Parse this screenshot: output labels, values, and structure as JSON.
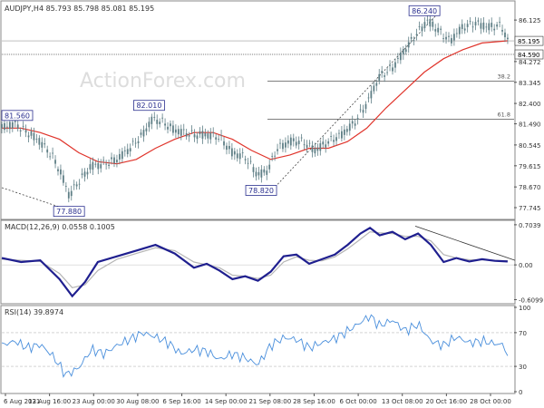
{
  "chart_data": [
    {
      "type": "candlestick",
      "title": "AUDJPY,H4 85.793 85.798 85.081 85.195",
      "y_ticks": [
        86.125,
        84.272,
        83.345,
        82.4,
        81.49,
        80.545,
        79.615,
        78.67,
        77.745
      ],
      "ylim": [
        77.3,
        86.9
      ],
      "x_ticks": [
        "6 Aug 2021",
        "13 Aug 16:00",
        "23 Aug 00:00",
        "30 Aug 08:00",
        "6 Sep 16:00",
        "14 Sep 00:00",
        "21 Sep 08:00",
        "28 Sep 16:00",
        "6 Oct 00:00",
        "13 Oct 08:00",
        "20 Oct 16:00",
        "28 Oct 00:00"
      ],
      "current_price": "85.195",
      "level_labels": [
        "84.590"
      ],
      "fib_levels": [
        {
          "label": "38.2",
          "value": 83.4
        },
        {
          "label": "61.8",
          "value": 81.7
        }
      ],
      "price_annotations": [
        {
          "text": "81.560",
          "x": 0.5,
          "y": 81.56
        },
        {
          "text": "77.880",
          "x": 10.5,
          "y": 77.88
        },
        {
          "text": "82.010",
          "x": 23,
          "y": 82.01
        },
        {
          "text": "78.820",
          "x": 40.5,
          "y": 78.82
        },
        {
          "text": "86.240",
          "x": 66,
          "y": 86.24
        }
      ],
      "price_path": [
        {
          "x": 0,
          "y": 81.3
        },
        {
          "x": 2,
          "y": 81.5
        },
        {
          "x": 4,
          "y": 81.1
        },
        {
          "x": 6,
          "y": 80.7
        },
        {
          "x": 8,
          "y": 80.0
        },
        {
          "x": 9.5,
          "y": 79.1
        },
        {
          "x": 10.5,
          "y": 78.3
        },
        {
          "x": 12,
          "y": 78.9
        },
        {
          "x": 14,
          "y": 79.6
        },
        {
          "x": 16,
          "y": 79.7
        },
        {
          "x": 18,
          "y": 79.9
        },
        {
          "x": 20,
          "y": 80.4
        },
        {
          "x": 22,
          "y": 81.0
        },
        {
          "x": 23.5,
          "y": 81.7
        },
        {
          "x": 25,
          "y": 81.6
        },
        {
          "x": 27,
          "y": 81.2
        },
        {
          "x": 30,
          "y": 81.0
        },
        {
          "x": 32,
          "y": 81.0
        },
        {
          "x": 34,
          "y": 80.9
        },
        {
          "x": 36,
          "y": 80.2
        },
        {
          "x": 38,
          "y": 80.0
        },
        {
          "x": 40,
          "y": 79.2
        },
        {
          "x": 41.5,
          "y": 79.4
        },
        {
          "x": 43,
          "y": 80.4
        },
        {
          "x": 45,
          "y": 80.7
        },
        {
          "x": 47,
          "y": 80.7
        },
        {
          "x": 49,
          "y": 80.3
        },
        {
          "x": 51,
          "y": 80.7
        },
        {
          "x": 53,
          "y": 81.0
        },
        {
          "x": 55,
          "y": 81.5
        },
        {
          "x": 57,
          "y": 82.4
        },
        {
          "x": 59,
          "y": 83.6
        },
        {
          "x": 61,
          "y": 84.0
        },
        {
          "x": 63,
          "y": 84.8
        },
        {
          "x": 65,
          "y": 85.6
        },
        {
          "x": 66.5,
          "y": 86.1
        },
        {
          "x": 68,
          "y": 85.7
        },
        {
          "x": 70,
          "y": 85.2
        },
        {
          "x": 72,
          "y": 85.8
        },
        {
          "x": 74,
          "y": 86.0
        },
        {
          "x": 76,
          "y": 85.8
        },
        {
          "x": 78,
          "y": 85.9
        },
        {
          "x": 79,
          "y": 85.2
        }
      ],
      "ma_path": [
        {
          "x": 0,
          "y": 81.3
        },
        {
          "x": 3,
          "y": 81.3
        },
        {
          "x": 6,
          "y": 81.1
        },
        {
          "x": 9,
          "y": 80.8
        },
        {
          "x": 12,
          "y": 80.2
        },
        {
          "x": 15,
          "y": 79.8
        },
        {
          "x": 18,
          "y": 79.7
        },
        {
          "x": 21,
          "y": 79.9
        },
        {
          "x": 24,
          "y": 80.4
        },
        {
          "x": 27,
          "y": 80.8
        },
        {
          "x": 30,
          "y": 81.1
        },
        {
          "x": 33,
          "y": 81.1
        },
        {
          "x": 36,
          "y": 80.8
        },
        {
          "x": 39,
          "y": 80.3
        },
        {
          "x": 42,
          "y": 79.9
        },
        {
          "x": 45,
          "y": 80.1
        },
        {
          "x": 48,
          "y": 80.4
        },
        {
          "x": 51,
          "y": 80.4
        },
        {
          "x": 54,
          "y": 80.7
        },
        {
          "x": 57,
          "y": 81.3
        },
        {
          "x": 60,
          "y": 82.2
        },
        {
          "x": 63,
          "y": 83.0
        },
        {
          "x": 66,
          "y": 83.8
        },
        {
          "x": 69,
          "y": 84.4
        },
        {
          "x": 72,
          "y": 84.8
        },
        {
          "x": 75,
          "y": 85.1
        },
        {
          "x": 79,
          "y": 85.2
        }
      ],
      "colors": {
        "candles": "#5f7f86",
        "ma": "#e0342b",
        "annotation": "#2a2f8f",
        "levels": "#333333"
      }
    },
    {
      "type": "line",
      "title": "MACD(12,26,9) 0.0558 0.1005",
      "y_ticks": [
        "0.7039",
        "0.00",
        "-0.6099"
      ],
      "ylim": [
        -0.65,
        0.75
      ],
      "series": [
        {
          "name": "MACD",
          "color": "#1f1f8f",
          "points": [
            {
              "x": 0,
              "y": 0.12
            },
            {
              "x": 3,
              "y": 0.05
            },
            {
              "x": 6,
              "y": 0.08
            },
            {
              "x": 9,
              "y": -0.25
            },
            {
              "x": 11,
              "y": -0.55
            },
            {
              "x": 13,
              "y": -0.3
            },
            {
              "x": 15,
              "y": 0.05
            },
            {
              "x": 18,
              "y": 0.15
            },
            {
              "x": 21,
              "y": 0.25
            },
            {
              "x": 24,
              "y": 0.35
            },
            {
              "x": 27,
              "y": 0.2
            },
            {
              "x": 30,
              "y": -0.05
            },
            {
              "x": 32,
              "y": 0.02
            },
            {
              "x": 34,
              "y": -0.1
            },
            {
              "x": 36,
              "y": -0.25
            },
            {
              "x": 38,
              "y": -0.2
            },
            {
              "x": 40,
              "y": -0.28
            },
            {
              "x": 42,
              "y": -0.12
            },
            {
              "x": 44,
              "y": 0.15
            },
            {
              "x": 46,
              "y": 0.18
            },
            {
              "x": 48,
              "y": 0.02
            },
            {
              "x": 50,
              "y": 0.1
            },
            {
              "x": 52,
              "y": 0.18
            },
            {
              "x": 54,
              "y": 0.35
            },
            {
              "x": 56,
              "y": 0.55
            },
            {
              "x": 57.5,
              "y": 0.65
            },
            {
              "x": 59,
              "y": 0.52
            },
            {
              "x": 61,
              "y": 0.58
            },
            {
              "x": 63,
              "y": 0.45
            },
            {
              "x": 65,
              "y": 0.55
            },
            {
              "x": 67,
              "y": 0.35
            },
            {
              "x": 69,
              "y": 0.05
            },
            {
              "x": 71,
              "y": 0.12
            },
            {
              "x": 73,
              "y": 0.06
            },
            {
              "x": 75,
              "y": 0.1
            },
            {
              "x": 77,
              "y": 0.07
            },
            {
              "x": 79,
              "y": 0.06
            }
          ]
        },
        {
          "name": "Signal",
          "color": "#b5b5b5",
          "points": [
            {
              "x": 0,
              "y": 0.1
            },
            {
              "x": 3,
              "y": 0.08
            },
            {
              "x": 6,
              "y": 0.06
            },
            {
              "x": 9,
              "y": -0.15
            },
            {
              "x": 11,
              "y": -0.4
            },
            {
              "x": 13,
              "y": -0.35
            },
            {
              "x": 15,
              "y": -0.1
            },
            {
              "x": 18,
              "y": 0.1
            },
            {
              "x": 21,
              "y": 0.2
            },
            {
              "x": 24,
              "y": 0.3
            },
            {
              "x": 27,
              "y": 0.25
            },
            {
              "x": 30,
              "y": 0.05
            },
            {
              "x": 32,
              "y": 0.0
            },
            {
              "x": 34,
              "y": -0.05
            },
            {
              "x": 36,
              "y": -0.18
            },
            {
              "x": 38,
              "y": -0.2
            },
            {
              "x": 40,
              "y": -0.24
            },
            {
              "x": 42,
              "y": -0.18
            },
            {
              "x": 44,
              "y": 0.05
            },
            {
              "x": 46,
              "y": 0.14
            },
            {
              "x": 48,
              "y": 0.08
            },
            {
              "x": 50,
              "y": 0.07
            },
            {
              "x": 52,
              "y": 0.14
            },
            {
              "x": 54,
              "y": 0.28
            },
            {
              "x": 56,
              "y": 0.45
            },
            {
              "x": 57.5,
              "y": 0.58
            },
            {
              "x": 59,
              "y": 0.56
            },
            {
              "x": 61,
              "y": 0.55
            },
            {
              "x": 63,
              "y": 0.5
            },
            {
              "x": 65,
              "y": 0.5
            },
            {
              "x": 67,
              "y": 0.42
            },
            {
              "x": 69,
              "y": 0.18
            },
            {
              "x": 71,
              "y": 0.12
            },
            {
              "x": 73,
              "y": 0.09
            },
            {
              "x": 75,
              "y": 0.09
            },
            {
              "x": 77,
              "y": 0.08
            },
            {
              "x": 79,
              "y": 0.07
            }
          ]
        }
      ]
    },
    {
      "type": "line",
      "title": "RSI(14) 39.8974",
      "y_ticks": [
        "100",
        "70",
        "30",
        "0"
      ],
      "ylim": [
        0,
        100
      ],
      "series": [
        {
          "name": "RSI",
          "color": "#4a8fdc",
          "points": [
            {
              "x": 0,
              "y": 55
            },
            {
              "x": 2,
              "y": 60
            },
            {
              "x": 4,
              "y": 52
            },
            {
              "x": 6,
              "y": 56
            },
            {
              "x": 8,
              "y": 42
            },
            {
              "x": 10,
              "y": 20
            },
            {
              "x": 12,
              "y": 28
            },
            {
              "x": 14,
              "y": 50
            },
            {
              "x": 16,
              "y": 45
            },
            {
              "x": 18,
              "y": 55
            },
            {
              "x": 20,
              "y": 62
            },
            {
              "x": 22,
              "y": 70
            },
            {
              "x": 24,
              "y": 65
            },
            {
              "x": 26,
              "y": 58
            },
            {
              "x": 28,
              "y": 45
            },
            {
              "x": 30,
              "y": 50
            },
            {
              "x": 32,
              "y": 48
            },
            {
              "x": 34,
              "y": 38
            },
            {
              "x": 36,
              "y": 45
            },
            {
              "x": 38,
              "y": 40
            },
            {
              "x": 40,
              "y": 32
            },
            {
              "x": 42,
              "y": 55
            },
            {
              "x": 44,
              "y": 64
            },
            {
              "x": 46,
              "y": 62
            },
            {
              "x": 48,
              "y": 52
            },
            {
              "x": 50,
              "y": 58
            },
            {
              "x": 52,
              "y": 63
            },
            {
              "x": 54,
              "y": 72
            },
            {
              "x": 56,
              "y": 82
            },
            {
              "x": 57.5,
              "y": 90
            },
            {
              "x": 59,
              "y": 78
            },
            {
              "x": 61,
              "y": 85
            },
            {
              "x": 63,
              "y": 72
            },
            {
              "x": 65,
              "y": 80
            },
            {
              "x": 67,
              "y": 60
            },
            {
              "x": 69,
              "y": 55
            },
            {
              "x": 71,
              "y": 65
            },
            {
              "x": 73,
              "y": 58
            },
            {
              "x": 75,
              "y": 60
            },
            {
              "x": 77,
              "y": 57
            },
            {
              "x": 78.5,
              "y": 55
            },
            {
              "x": 79,
              "y": 40
            }
          ]
        }
      ]
    }
  ],
  "watermark": "ActionForex.com"
}
